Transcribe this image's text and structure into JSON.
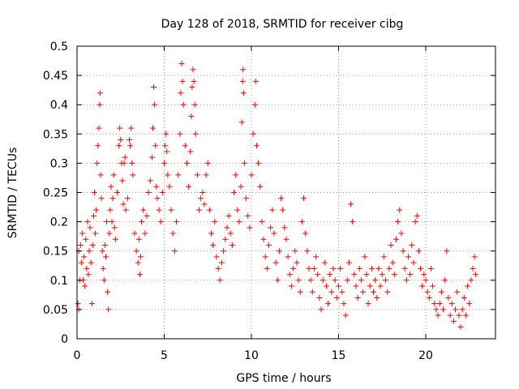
{
  "chart_data": {
    "type": "scatter",
    "title": "Day 128 of 2018, SRMTID for receiver cibg",
    "xlabel": "GPS time / hours",
    "ylabel": "SRMTID / TECUs",
    "xlim": [
      0,
      24
    ],
    "ylim": [
      0,
      0.5
    ],
    "xticks": [
      0,
      5,
      10,
      15,
      20
    ],
    "xtick_labels": [
      "0",
      "5",
      "10",
      "15",
      "20"
    ],
    "yticks": [
      0,
      0.05,
      0.1,
      0.15,
      0.2,
      0.25,
      0.3,
      0.35,
      0.4,
      0.45,
      0.5
    ],
    "ytick_labels": [
      "0",
      "0.05",
      "0.1",
      "0.15",
      "0.2",
      "0.25",
      "0.3",
      "0.35",
      "0.4",
      "0.45",
      "0.5"
    ],
    "grid": true,
    "marker": "+",
    "color": "#ff0000",
    "series": [
      {
        "name": "SRMTID",
        "points": [
          [
            0.05,
            0.06
          ],
          [
            0.1,
            0.05
          ],
          [
            0.1,
            0.15
          ],
          [
            0.15,
            0.1
          ],
          [
            0.2,
            0.16
          ],
          [
            0.25,
            0.13
          ],
          [
            0.3,
            0.18
          ],
          [
            0.35,
            0.1
          ],
          [
            0.4,
            0.14
          ],
          [
            0.45,
            0.09
          ],
          [
            0.5,
            0.17
          ],
          [
            0.55,
            0.12
          ],
          [
            0.6,
            0.2
          ],
          [
            0.65,
            0.11
          ],
          [
            0.7,
            0.15
          ],
          [
            0.75,
            0.19
          ],
          [
            0.8,
            0.13
          ],
          [
            0.85,
            0.06
          ],
          [
            0.9,
            0.16
          ],
          [
            0.95,
            0.21
          ],
          [
            1.0,
            0.25
          ],
          [
            1.05,
            0.18
          ],
          [
            1.1,
            0.22
          ],
          [
            1.15,
            0.3
          ],
          [
            1.2,
            0.33
          ],
          [
            1.25,
            0.36
          ],
          [
            1.3,
            0.4
          ],
          [
            1.32,
            0.42
          ],
          [
            1.35,
            0.28
          ],
          [
            1.4,
            0.24
          ],
          [
            1.45,
            0.15
          ],
          [
            1.5,
            0.12
          ],
          [
            1.55,
            0.1
          ],
          [
            1.6,
            0.16
          ],
          [
            1.65,
            0.14
          ],
          [
            1.7,
            0.2
          ],
          [
            1.75,
            0.08
          ],
          [
            1.8,
            0.05
          ],
          [
            1.85,
            0.18
          ],
          [
            1.9,
            0.22
          ],
          [
            1.95,
            0.26
          ],
          [
            2.0,
            0.2
          ],
          [
            2.05,
            0.24
          ],
          [
            2.1,
            0.28
          ],
          [
            2.15,
            0.19
          ],
          [
            2.2,
            0.17
          ],
          [
            2.3,
            0.25
          ],
          [
            2.4,
            0.33
          ],
          [
            2.45,
            0.36
          ],
          [
            2.5,
            0.34
          ],
          [
            2.55,
            0.3
          ],
          [
            2.6,
            0.27
          ],
          [
            2.65,
            0.23
          ],
          [
            2.7,
            0.3
          ],
          [
            2.75,
            0.31
          ],
          [
            2.8,
            0.22
          ],
          [
            2.9,
            0.24
          ],
          [
            3.0,
            0.34
          ],
          [
            3.05,
            0.33
          ],
          [
            3.1,
            0.36
          ],
          [
            3.15,
            0.3
          ],
          [
            3.2,
            0.28
          ],
          [
            3.3,
            0.18
          ],
          [
            3.4,
            0.15
          ],
          [
            3.5,
            0.13
          ],
          [
            3.55,
            0.17
          ],
          [
            3.6,
            0.11
          ],
          [
            3.65,
            0.14
          ],
          [
            3.7,
            0.2
          ],
          [
            3.8,
            0.22
          ],
          [
            3.9,
            0.18
          ],
          [
            4.0,
            0.21
          ],
          [
            4.1,
            0.25
          ],
          [
            4.2,
            0.27
          ],
          [
            4.3,
            0.31
          ],
          [
            4.35,
            0.36
          ],
          [
            4.4,
            0.43
          ],
          [
            4.45,
            0.4
          ],
          [
            4.5,
            0.33
          ],
          [
            4.55,
            0.26
          ],
          [
            4.6,
            0.24
          ],
          [
            4.7,
            0.22
          ],
          [
            4.8,
            0.2
          ],
          [
            4.9,
            0.25
          ],
          [
            5.0,
            0.3
          ],
          [
            5.05,
            0.33
          ],
          [
            5.1,
            0.35
          ],
          [
            5.15,
            0.32
          ],
          [
            5.2,
            0.28
          ],
          [
            5.3,
            0.26
          ],
          [
            5.4,
            0.22
          ],
          [
            5.5,
            0.18
          ],
          [
            5.6,
            0.15
          ],
          [
            5.7,
            0.2
          ],
          [
            5.8,
            0.28
          ],
          [
            5.9,
            0.35
          ],
          [
            5.95,
            0.42
          ],
          [
            6.0,
            0.47
          ],
          [
            6.05,
            0.44
          ],
          [
            6.1,
            0.4
          ],
          [
            6.2,
            0.33
          ],
          [
            6.3,
            0.3
          ],
          [
            6.4,
            0.26
          ],
          [
            6.5,
            0.32
          ],
          [
            6.55,
            0.38
          ],
          [
            6.6,
            0.43
          ],
          [
            6.65,
            0.46
          ],
          [
            6.7,
            0.44
          ],
          [
            6.75,
            0.4
          ],
          [
            6.8,
            0.35
          ],
          [
            6.9,
            0.28
          ],
          [
            7.0,
            0.22
          ],
          [
            7.1,
            0.24
          ],
          [
            7.2,
            0.25
          ],
          [
            7.3,
            0.23
          ],
          [
            7.4,
            0.28
          ],
          [
            7.5,
            0.3
          ],
          [
            7.6,
            0.22
          ],
          [
            7.7,
            0.18
          ],
          [
            7.8,
            0.16
          ],
          [
            7.9,
            0.2
          ],
          [
            8.0,
            0.14
          ],
          [
            8.1,
            0.12
          ],
          [
            8.2,
            0.1
          ],
          [
            8.3,
            0.13
          ],
          [
            8.4,
            0.15
          ],
          [
            8.5,
            0.17
          ],
          [
            8.6,
            0.19
          ],
          [
            8.7,
            0.21
          ],
          [
            8.8,
            0.18
          ],
          [
            8.9,
            0.16
          ],
          [
            9.0,
            0.25
          ],
          [
            9.1,
            0.28
          ],
          [
            9.2,
            0.22
          ],
          [
            9.3,
            0.2
          ],
          [
            9.4,
            0.26
          ],
          [
            9.45,
            0.37
          ],
          [
            9.5,
            0.44
          ],
          [
            9.52,
            0.46
          ],
          [
            9.55,
            0.42
          ],
          [
            9.6,
            0.3
          ],
          [
            9.7,
            0.24
          ],
          [
            9.8,
            0.21
          ],
          [
            9.9,
            0.19
          ],
          [
            10.0,
            0.28
          ],
          [
            10.1,
            0.35
          ],
          [
            10.2,
            0.4
          ],
          [
            10.25,
            0.44
          ],
          [
            10.3,
            0.33
          ],
          [
            10.4,
            0.3
          ],
          [
            10.5,
            0.26
          ],
          [
            10.6,
            0.2
          ],
          [
            10.7,
            0.17
          ],
          [
            10.8,
            0.14
          ],
          [
            10.9,
            0.12
          ],
          [
            11.0,
            0.16
          ],
          [
            11.1,
            0.19
          ],
          [
            11.2,
            0.22
          ],
          [
            11.3,
            0.18
          ],
          [
            11.4,
            0.13
          ],
          [
            11.5,
            0.1
          ],
          [
            11.6,
            0.15
          ],
          [
            11.7,
            0.24
          ],
          [
            11.8,
            0.22
          ],
          [
            11.9,
            0.19
          ],
          [
            12.0,
            0.17
          ],
          [
            12.1,
            0.14
          ],
          [
            12.2,
            0.11
          ],
          [
            12.3,
            0.09
          ],
          [
            12.4,
            0.12
          ],
          [
            12.5,
            0.15
          ],
          [
            12.6,
            0.13
          ],
          [
            12.7,
            0.1
          ],
          [
            12.8,
            0.08
          ],
          [
            12.9,
            0.2
          ],
          [
            13.0,
            0.24
          ],
          [
            13.1,
            0.18
          ],
          [
            13.2,
            0.15
          ],
          [
            13.3,
            0.12
          ],
          [
            13.4,
            0.1
          ],
          [
            13.5,
            0.08
          ],
          [
            13.6,
            0.12
          ],
          [
            13.7,
            0.14
          ],
          [
            13.8,
            0.11
          ],
          [
            13.9,
            0.07
          ],
          [
            14.0,
            0.05
          ],
          [
            14.1,
            0.1
          ],
          [
            14.2,
            0.13
          ],
          [
            14.3,
            0.09
          ],
          [
            14.4,
            0.06
          ],
          [
            14.5,
            0.11
          ],
          [
            14.6,
            0.08
          ],
          [
            14.7,
            0.12
          ],
          [
            14.8,
            0.1
          ],
          [
            14.9,
            0.07
          ],
          [
            15.0,
            0.09
          ],
          [
            15.1,
            0.12
          ],
          [
            15.2,
            0.08
          ],
          [
            15.3,
            0.06
          ],
          [
            15.4,
            0.04
          ],
          [
            15.5,
            0.1
          ],
          [
            15.6,
            0.13
          ],
          [
            15.7,
            0.23
          ],
          [
            15.8,
            0.2
          ],
          [
            15.9,
            0.11
          ],
          [
            16.0,
            0.09
          ],
          [
            16.1,
            0.07
          ],
          [
            16.2,
            0.12
          ],
          [
            16.3,
            0.1
          ],
          [
            16.4,
            0.08
          ],
          [
            16.5,
            0.14
          ],
          [
            16.6,
            0.11
          ],
          [
            16.7,
            0.06
          ],
          [
            16.8,
            0.09
          ],
          [
            16.9,
            0.12
          ],
          [
            17.0,
            0.08
          ],
          [
            17.1,
            0.1
          ],
          [
            17.2,
            0.07
          ],
          [
            17.3,
            0.12
          ],
          [
            17.4,
            0.09
          ],
          [
            17.5,
            0.11
          ],
          [
            17.6,
            0.14
          ],
          [
            17.7,
            0.1
          ],
          [
            17.8,
            0.08
          ],
          [
            17.9,
            0.12
          ],
          [
            18.0,
            0.16
          ],
          [
            18.1,
            0.13
          ],
          [
            18.2,
            0.11
          ],
          [
            18.3,
            0.17
          ],
          [
            18.4,
            0.2
          ],
          [
            18.5,
            0.22
          ],
          [
            18.6,
            0.18
          ],
          [
            18.7,
            0.15
          ],
          [
            18.8,
            0.12
          ],
          [
            18.9,
            0.1
          ],
          [
            19.0,
            0.14
          ],
          [
            19.1,
            0.11
          ],
          [
            19.2,
            0.16
          ],
          [
            19.3,
            0.13
          ],
          [
            19.4,
            0.2
          ],
          [
            19.5,
            0.21
          ],
          [
            19.6,
            0.15
          ],
          [
            19.7,
            0.12
          ],
          [
            19.8,
            0.09
          ],
          [
            19.9,
            0.11
          ],
          [
            20.0,
            0.1
          ],
          [
            20.1,
            0.08
          ],
          [
            20.2,
            0.07
          ],
          [
            20.3,
            0.12
          ],
          [
            20.4,
            0.09
          ],
          [
            20.5,
            0.06
          ],
          [
            20.6,
            0.05
          ],
          [
            20.7,
            0.04
          ],
          [
            20.8,
            0.06
          ],
          [
            20.9,
            0.08
          ],
          [
            21.0,
            0.05
          ],
          [
            21.1,
            0.1
          ],
          [
            21.2,
            0.15
          ],
          [
            21.3,
            0.07
          ],
          [
            21.4,
            0.04
          ],
          [
            21.5,
            0.06
          ],
          [
            21.6,
            0.03
          ],
          [
            21.7,
            0.05
          ],
          [
            21.8,
            0.08
          ],
          [
            21.9,
            0.04
          ],
          [
            22.0,
            0.02
          ],
          [
            22.1,
            0.05
          ],
          [
            22.2,
            0.07
          ],
          [
            22.3,
            0.04
          ],
          [
            22.4,
            0.09
          ],
          [
            22.5,
            0.06
          ],
          [
            22.6,
            0.1
          ],
          [
            22.7,
            0.12
          ],
          [
            22.8,
            0.14
          ],
          [
            22.85,
            0.11
          ]
        ]
      }
    ]
  }
}
